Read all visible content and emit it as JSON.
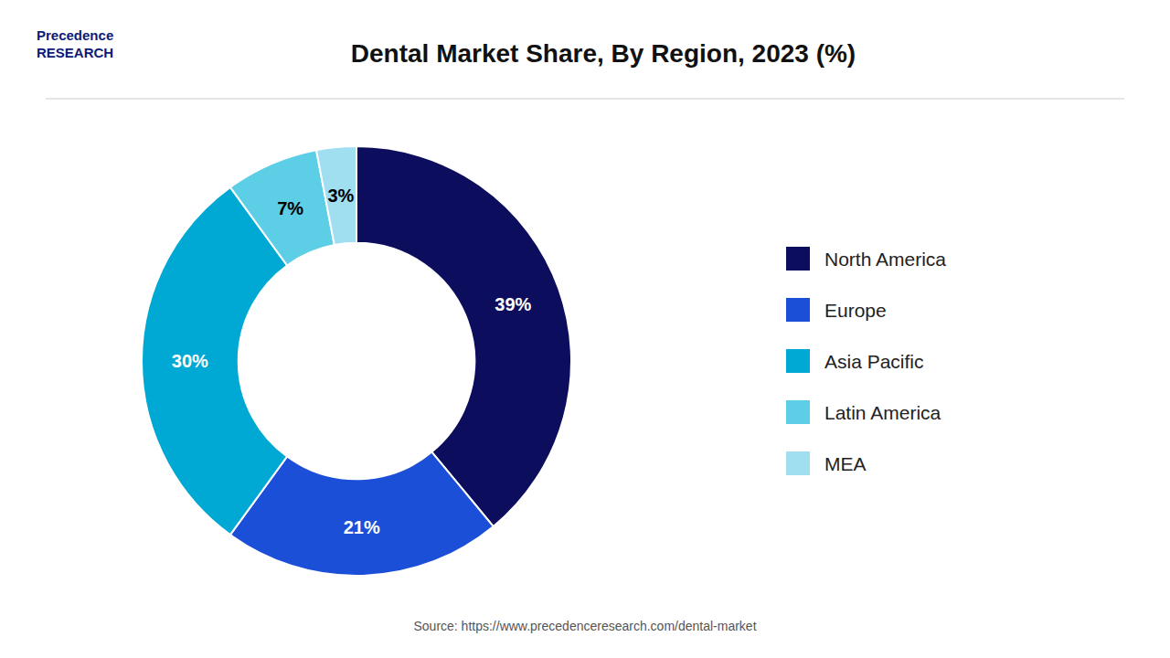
{
  "chart_data": {
    "type": "pie",
    "title": "Dental Market Share, By Region, 2023 (%)",
    "categories": [
      "North America",
      "Europe",
      "Asia Pacific",
      "Latin America",
      "MEA"
    ],
    "values": [
      39,
      21,
      30,
      7,
      3
    ],
    "value_labels": [
      "39%",
      "21%",
      "30%",
      "7%",
      "3%"
    ],
    "colors": [
      "#0d0d5e",
      "#1c4fd8",
      "#00a8d4",
      "#5ccfe6",
      "#a0dff0"
    ],
    "data_labels": true,
    "legend": "right",
    "annotations": [
      "Precedence\nRESEARCH",
      "Source: https://www.precedenceresearch.com/dental-market"
    ]
  }
}
